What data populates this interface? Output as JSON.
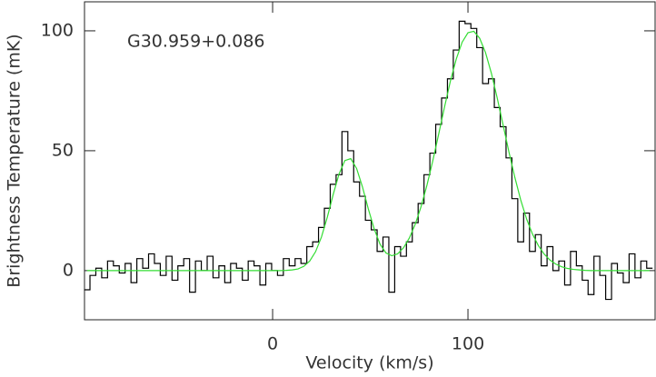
{
  "chart_data": {
    "type": "step",
    "annotation": "G30.959+0.086",
    "xlabel": "Velocity (km/s)",
    "ylabel": "Brightness Temperature (mK)",
    "xlim": [
      -96.3,
      195.8
    ],
    "ylim": [
      -20.5,
      112.1
    ],
    "xticks": [
      0,
      100
    ],
    "yticks": [
      0,
      50,
      100
    ],
    "x": [
      -95,
      -92,
      -89,
      -86,
      -83,
      -80,
      -77,
      -74,
      -71,
      -68,
      -65,
      -62,
      -59,
      -56,
      -53,
      -50,
      -47,
      -44,
      -41,
      -38,
      -35,
      -32,
      -29,
      -26,
      -23,
      -20,
      -17,
      -14,
      -11,
      -8,
      -5,
      -2,
      1,
      4,
      7,
      10,
      13,
      16,
      19,
      22,
      25,
      28,
      31,
      34,
      37,
      40,
      43,
      46,
      49,
      52,
      55,
      58,
      61,
      64,
      67,
      70,
      73,
      76,
      79,
      82,
      85,
      88,
      91,
      94,
      97,
      100,
      103,
      106,
      109,
      112,
      115,
      118,
      121,
      124,
      127,
      130,
      133,
      136,
      139,
      142,
      145,
      148,
      151,
      154,
      157,
      160,
      163,
      166,
      169,
      172,
      175,
      178,
      181,
      184,
      187,
      190,
      193
    ],
    "series": [
      {
        "color": "#000000",
        "style": "step",
        "values": [
          -8,
          -2,
          1,
          -3,
          4,
          2,
          -1,
          3,
          -5,
          5,
          1,
          7,
          3,
          -2,
          6,
          -4,
          2,
          5,
          -9,
          4,
          0,
          6,
          -3,
          2,
          -5,
          3,
          1,
          -4,
          4,
          2,
          -6,
          3,
          0,
          -2,
          5,
          2,
          5,
          3,
          10,
          12,
          18,
          26,
          36,
          40,
          58,
          50,
          37,
          31,
          21,
          17,
          8,
          14,
          -9,
          10,
          6,
          12,
          20,
          28,
          40,
          49,
          61,
          72,
          80,
          92,
          104,
          103,
          101,
          93,
          78,
          80,
          68,
          60,
          47,
          30,
          12,
          24,
          8,
          15,
          2,
          10,
          0,
          4,
          -6,
          8,
          2,
          -4,
          -10,
          6,
          -2,
          -12,
          3,
          -1,
          -5,
          7,
          -3,
          4,
          1
        ]
      },
      {
        "color": "#33dd33",
        "style": "line",
        "values": [
          0,
          0,
          0,
          0,
          0,
          0,
          0,
          0,
          0,
          0,
          0,
          0,
          0,
          0,
          0,
          0,
          0,
          0,
          0,
          0,
          0,
          0,
          0,
          0,
          0,
          0,
          0,
          0,
          0,
          0,
          0,
          0,
          0,
          0,
          0.1,
          0.3,
          0.7,
          1.8,
          4.0,
          7.9,
          14.0,
          22.3,
          31.7,
          40.3,
          45.9,
          46.7,
          42.6,
          34.9,
          25.7,
          17.4,
          11.0,
          7.4,
          6.2,
          7.0,
          9.5,
          13.6,
          19.3,
          26.7,
          35.6,
          45.8,
          56.9,
          68.2,
          79.0,
          88.2,
          95.2,
          99.2,
          99.8,
          96.9,
          90.9,
          82.3,
          71.9,
          60.7,
          49.4,
          38.9,
          29.5,
          21.6,
          15.3,
          10.5,
          6.9,
          4.4,
          2.7,
          1.6,
          0.9,
          0.5,
          0.3,
          0.1,
          0,
          0,
          0,
          0,
          0,
          0,
          0,
          0,
          0,
          0,
          0
        ]
      }
    ]
  }
}
